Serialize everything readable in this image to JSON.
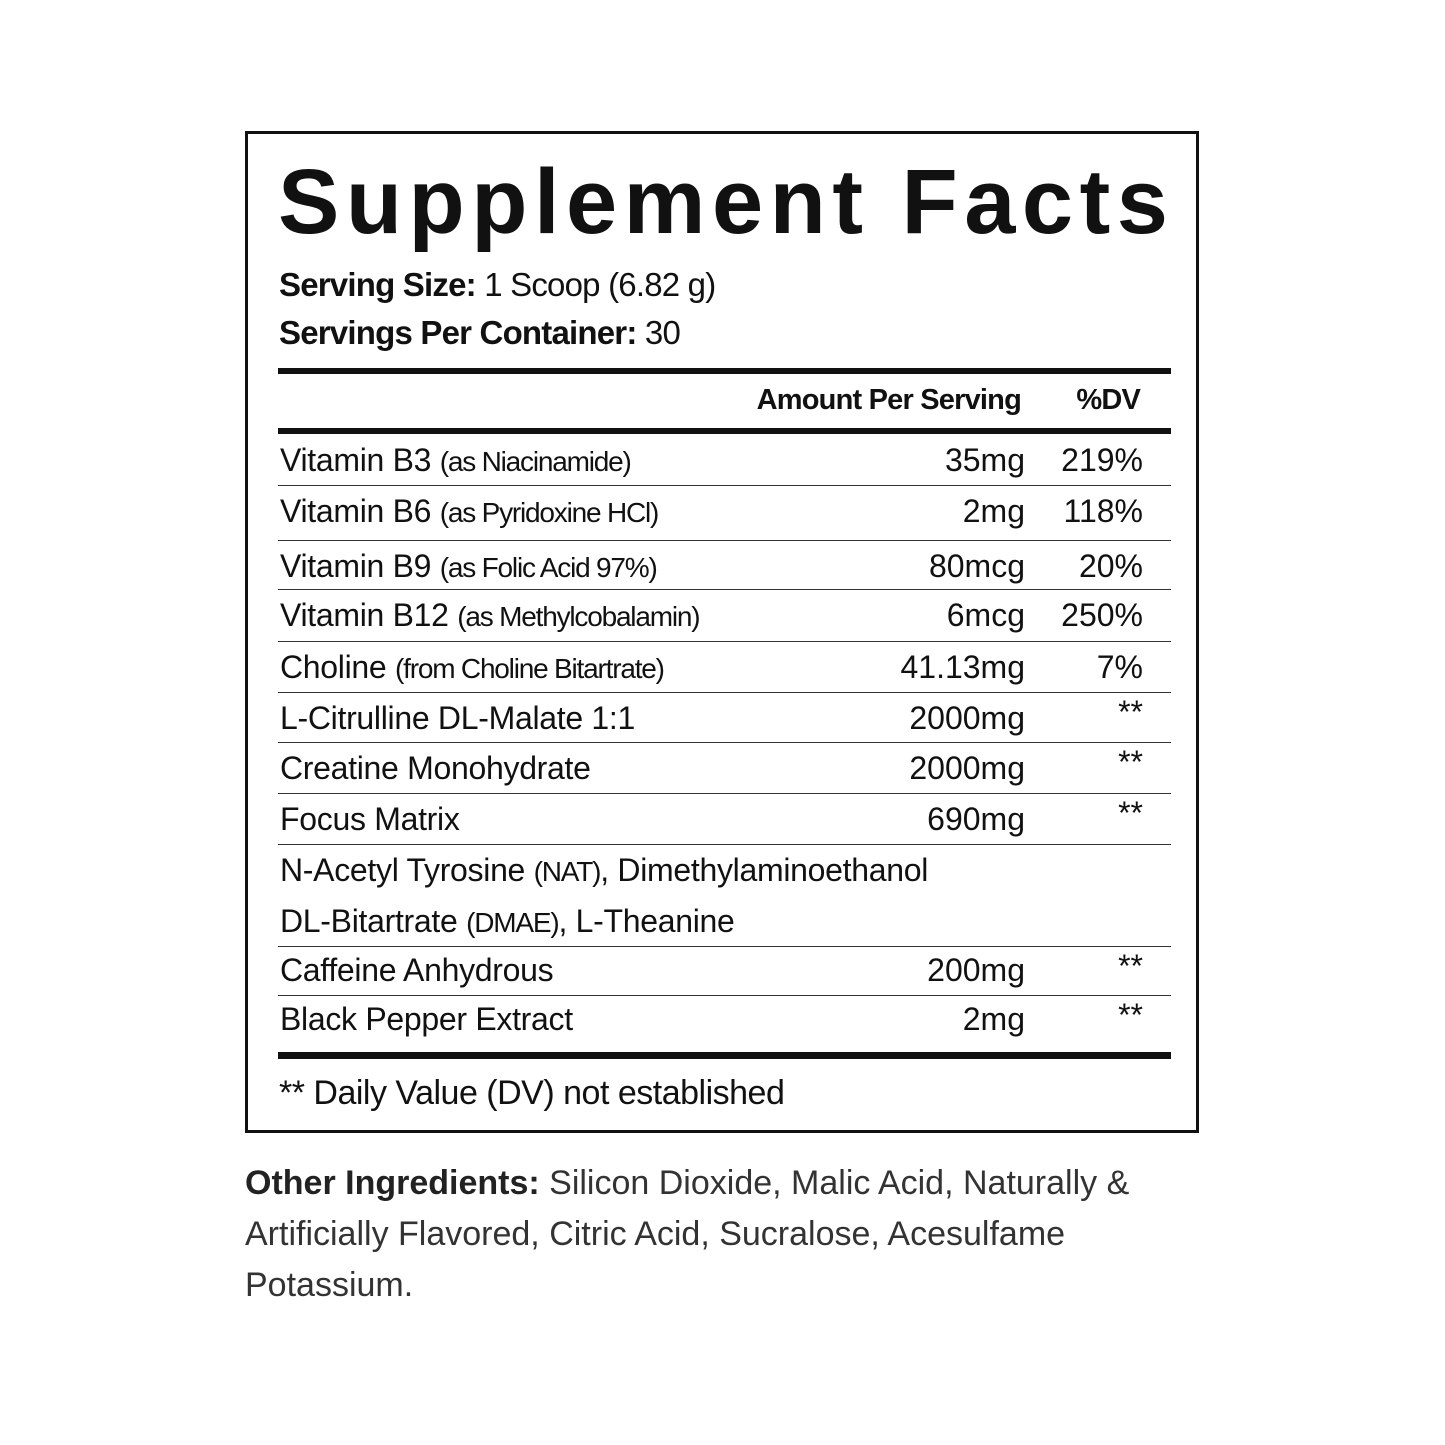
{
  "title": "Supplement Facts",
  "serving_size": {
    "label": "Serving Size:",
    "value": "1 Scoop (6.82 g)"
  },
  "servings_per_container": {
    "label": "Servings Per Container:",
    "value": "30"
  },
  "columns": {
    "amount": "Amount Per Serving",
    "dv": "%DV"
  },
  "rows": [
    {
      "name": "Vitamin B3",
      "note": "(as Niacinamide)",
      "amount": "35mg",
      "dv": "219%"
    },
    {
      "name": "Vitamin B6",
      "note": "(as Pyridoxine HCl)",
      "amount": "2mg",
      "dv": "118%"
    },
    {
      "name": "Vitamin B9",
      "note": "(as Folic Acid 97%)",
      "amount": "80mcg",
      "dv": "20%"
    },
    {
      "name": "Vitamin B12",
      "note": "(as Methylcobalamin)",
      "amount": "6mcg",
      "dv": "250%"
    },
    {
      "name": "Choline",
      "note": "(from Choline Bitartrate)",
      "amount": "41.13mg",
      "dv": "7%"
    },
    {
      "name": "L-Citrulline DL-Malate 1:1",
      "note": "",
      "amount": "2000mg",
      "dv": "**"
    },
    {
      "name": "Creatine Monohydrate",
      "note": "",
      "amount": "2000mg",
      "dv": "**"
    },
    {
      "name": "Focus Matrix",
      "note": "",
      "amount": "690mg",
      "dv": "**"
    }
  ],
  "focus_matrix_detail": {
    "line1_a": "N-Acetyl Tyrosine",
    "line1_b": "(NAT)",
    "line1_c": ", Dimethylaminoethanol",
    "line2_a": "DL-Bitartrate",
    "line2_b": "(DMAE)",
    "line2_c": ", L-Theanine"
  },
  "rows2": [
    {
      "name": "Caffeine Anhydrous",
      "amount": "200mg",
      "dv": "**"
    },
    {
      "name": "Black Pepper Extract",
      "amount": "2mg",
      "dv": "**"
    }
  ],
  "footnote": "** Daily Value (DV) not established",
  "other_ingredients": {
    "label": "Other Ingredients:",
    "text": " Silicon Dioxide, Malic Acid, Naturally & Artificially Flavored, Citric Acid, Sucralose, Acesulfame Potassium."
  }
}
